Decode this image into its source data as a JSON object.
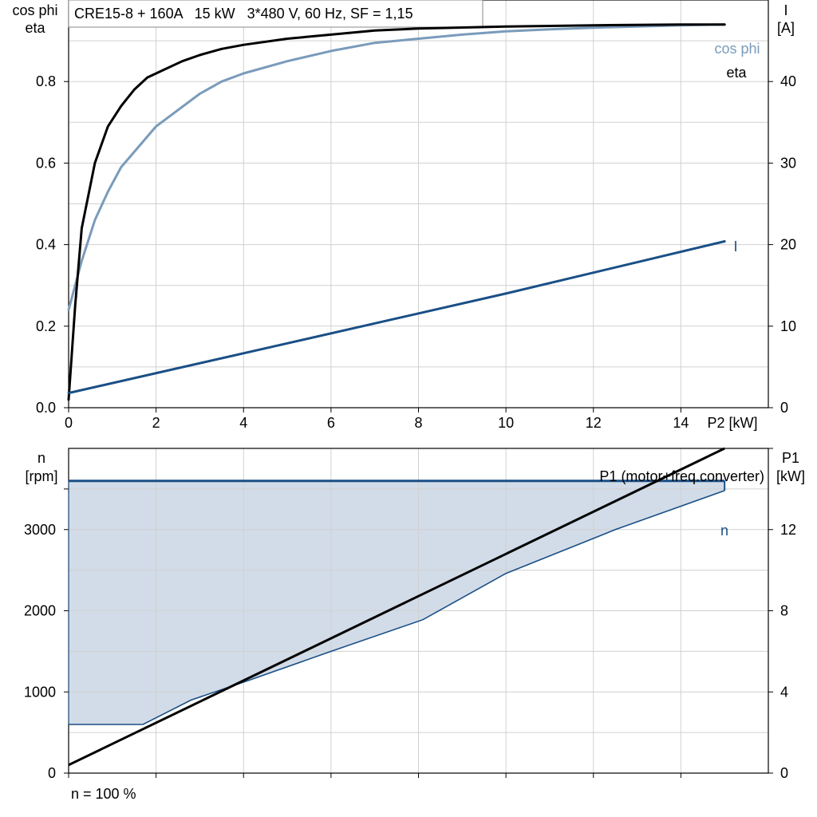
{
  "colors": {
    "eta": "#000000",
    "cosphi": "#7a9bbb",
    "current": "#1a4f86",
    "speed_fill": "#d2dce8",
    "speed_line": "#1a4f86",
    "p1": "#000000",
    "grid": "#d0d0d0"
  },
  "chart_data": [
    {
      "type": "line",
      "title": "CRE15-8 + 160A   15 kW   3*480 V, 60 Hz, SF = 1,15",
      "xlabel": "P2 [kW]",
      "ylabel_left_line1": "cos phi",
      "ylabel_left_line2": "eta",
      "ylabel_right_line1": "I",
      "ylabel_right_line2": "[A]",
      "xlim": [
        0,
        16
      ],
      "ylim_left": [
        0,
        1.0
      ],
      "ylim_right": [
        0,
        50
      ],
      "grid": true,
      "x_ticks": [
        "0",
        "2",
        "4",
        "6",
        "8",
        "10",
        "12",
        "14"
      ],
      "y_left_ticks": [
        "0.0",
        "0.2",
        "0.4",
        "0.6",
        "0.8"
      ],
      "y_right_ticks": [
        "0",
        "10",
        "20",
        "30",
        "40"
      ],
      "series": [
        {
          "name": "eta",
          "axis": "left",
          "x": [
            0,
            0.15,
            0.3,
            0.6,
            0.9,
            1.2,
            1.5,
            1.8,
            2.2,
            2.6,
            3,
            3.5,
            4,
            5,
            6,
            7,
            8,
            10,
            12,
            14,
            15
          ],
          "y": [
            0.02,
            0.25,
            0.44,
            0.6,
            0.69,
            0.74,
            0.78,
            0.81,
            0.83,
            0.85,
            0.865,
            0.88,
            0.89,
            0.905,
            0.915,
            0.925,
            0.93,
            0.935,
            0.938,
            0.94,
            0.94
          ]
        },
        {
          "name": "cos phi",
          "axis": "left",
          "x": [
            0,
            0.15,
            0.3,
            0.6,
            0.9,
            1.2,
            1.6,
            2,
            2.5,
            3,
            3.5,
            4,
            5,
            6,
            7,
            8,
            9,
            10,
            11,
            12,
            13,
            14,
            15
          ],
          "y": [
            0.24,
            0.3,
            0.36,
            0.46,
            0.53,
            0.59,
            0.64,
            0.69,
            0.73,
            0.77,
            0.8,
            0.82,
            0.85,
            0.875,
            0.895,
            0.905,
            0.915,
            0.923,
            0.928,
            0.932,
            0.935,
            0.938,
            0.94
          ]
        },
        {
          "name": "I",
          "axis": "right",
          "x": [
            0,
            5,
            10,
            15
          ],
          "y": [
            1.8,
            7.9,
            14.0,
            20.4
          ]
        }
      ]
    },
    {
      "type": "area",
      "ylabel_left_line1": "n",
      "ylabel_left_line2": "[rpm]",
      "ylabel_right_line1": "P1",
      "ylabel_right_line2": "[kW]",
      "xlim": [
        0,
        16
      ],
      "ylim_left": [
        0,
        4000
      ],
      "ylim_right": [
        0,
        16
      ],
      "grid": true,
      "y_left_ticks": [
        "0",
        "1000",
        "2000",
        "3000"
      ],
      "y_right_ticks": [
        "0",
        "4",
        "8",
        "12"
      ],
      "note": "n = 100 %",
      "series": [
        {
          "name": "n",
          "axis": "left",
          "role": "max speed",
          "x": [
            0,
            15
          ],
          "y": [
            3600,
            3600
          ]
        },
        {
          "axis": "left",
          "role": "min speed boundary",
          "x": [
            0,
            1.7,
            2.8,
            4.0,
            6.0,
            8.1,
            10.0,
            12.5,
            15.0
          ],
          "y": [
            600,
            600,
            900,
            1120,
            1500,
            1890,
            2460,
            3000,
            3480
          ]
        },
        {
          "name": "P1 (motor+freq.converter)",
          "axis": "right",
          "x": [
            0,
            15
          ],
          "y": [
            0.4,
            16.0
          ]
        }
      ]
    }
  ]
}
